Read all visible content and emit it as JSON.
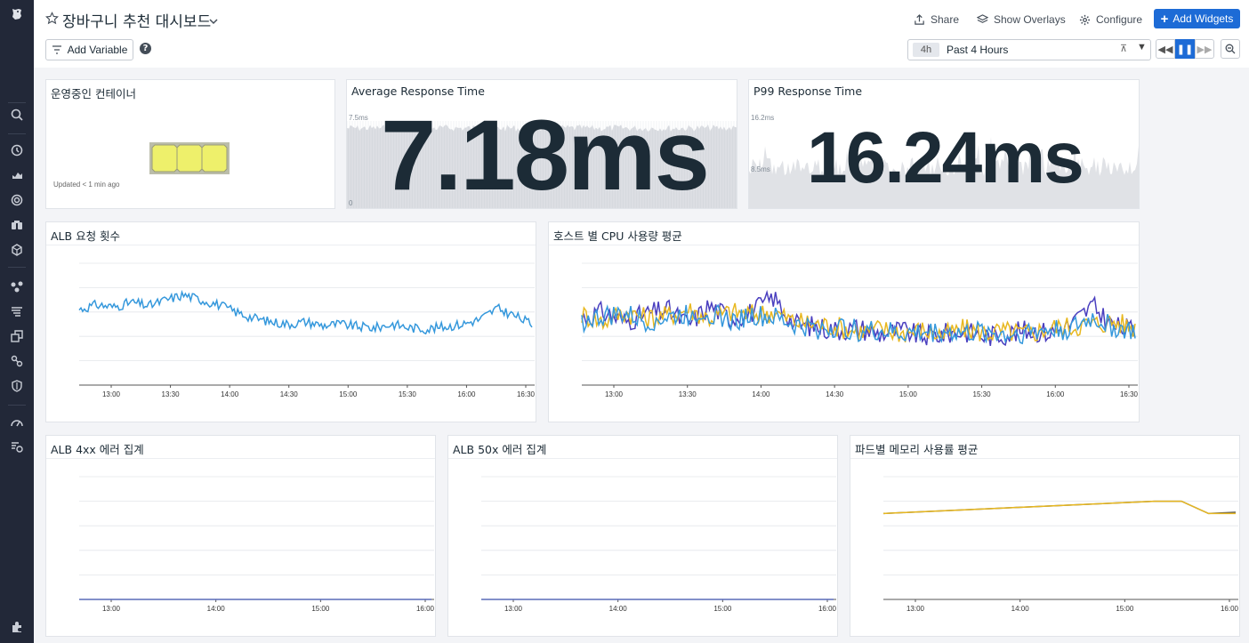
{
  "header": {
    "title": "장바구니 추천 대시보드",
    "share_label": "Share",
    "overlays_label": "Show Overlays",
    "configure_label": "Configure",
    "add_widgets_label": "Add Widgets",
    "add_variable_label": "Add Variable",
    "help_label": "?"
  },
  "timepicker": {
    "badge": "4h",
    "label": "Past 4 Hours"
  },
  "sidebar": {
    "icons": [
      "logo-icon",
      "search-icon",
      "history-icon",
      "dashboards-icon",
      "monitors-icon",
      "binoculars-icon",
      "infrastructure-icon",
      "apm-icon",
      "logs-icon",
      "synthetics-icon",
      "integrations-icon",
      "security-icon",
      "performance-icon",
      "watchdog-icon",
      "extensions-icon"
    ]
  },
  "widgets": {
    "containers": {
      "title": "운영중인 컨테이너",
      "updated": "Updated < 1 min ago",
      "hexagon_count": 3
    },
    "avg_response": {
      "title": "Average Response Time",
      "value": "7.18ms",
      "y_top": "7.5ms",
      "y_bottom": "0"
    },
    "p99_response": {
      "title": "P99 Response Time",
      "value": "16.24ms",
      "y_top": "16.2ms",
      "y_mid": "8.5ms"
    },
    "alb_requests": {
      "title": "ALB 요청 횟수"
    },
    "host_cpu": {
      "title": "호스트 별 CPU 사용량 평균"
    },
    "alb_4xx": {
      "title": "ALB 4xx 에러 집계"
    },
    "alb_50x": {
      "title": "ALB 50x 에러 집계"
    },
    "pod_memory": {
      "title": "파드별 메모리 사용률 평균"
    }
  },
  "colors": {
    "accent": "#1d6bd6",
    "series_blue": "#3598dc",
    "series_indigo": "#4a3fbf",
    "series_yellow": "#e8b820",
    "sidebar": "#222838",
    "hexagon": "#eef06b"
  },
  "chart_data": [
    {
      "type": "line",
      "title": "ALB 요청 횟수",
      "x_ticks": [
        "13:00",
        "13:30",
        "14:00",
        "14:30",
        "15:00",
        "15:30",
        "16:00",
        "16:30"
      ],
      "series": [
        {
          "values": [
            0.62,
            0.66,
            0.64,
            0.68,
            0.65,
            0.7,
            0.74,
            0.7,
            0.66,
            0.6,
            0.55,
            0.52,
            0.5,
            0.52,
            0.49,
            0.5,
            0.48,
            0.47,
            0.5,
            0.47,
            0.46,
            0.48,
            0.5,
            0.54,
            0.63,
            0.57,
            0.5
          ]
        }
      ]
    },
    {
      "type": "line",
      "title": "호스트 별 CPU 사용량 평균",
      "x_ticks": [
        "13:00",
        "13:30",
        "14:00",
        "14:30",
        "15:00",
        "15:30",
        "16:00",
        "16:30"
      ],
      "series": [
        {
          "values": [
            0.55,
            0.6,
            0.52,
            0.58,
            0.62,
            0.5,
            0.65,
            0.55,
            0.6,
            0.72,
            0.5,
            0.48,
            0.45,
            0.47,
            0.42,
            0.45,
            0.4,
            0.42,
            0.44,
            0.4,
            0.42,
            0.45,
            0.43,
            0.5,
            0.65,
            0.48,
            0.45
          ]
        },
        {
          "values": [
            0.58,
            0.52,
            0.6,
            0.55,
            0.57,
            0.62,
            0.55,
            0.6,
            0.58,
            0.6,
            0.52,
            0.5,
            0.48,
            0.44,
            0.46,
            0.43,
            0.45,
            0.41,
            0.46,
            0.43,
            0.44,
            0.42,
            0.47,
            0.48,
            0.5,
            0.52,
            0.47
          ]
        },
        {
          "values": [
            0.52,
            0.56,
            0.58,
            0.52,
            0.55,
            0.58,
            0.6,
            0.52,
            0.57,
            0.55,
            0.49,
            0.46,
            0.47,
            0.45,
            0.44,
            0.42,
            0.43,
            0.44,
            0.42,
            0.44,
            0.41,
            0.44,
            0.45,
            0.46,
            0.55,
            0.47,
            0.44
          ]
        }
      ]
    },
    {
      "type": "line",
      "title": "ALB 4xx 에러 집계",
      "x_ticks": [
        "13:00",
        "14:00",
        "15:00",
        "16:00"
      ],
      "series": [
        {
          "values": [
            0,
            0,
            0,
            0,
            0,
            0,
            0,
            0,
            0,
            0
          ]
        }
      ]
    },
    {
      "type": "line",
      "title": "ALB 50x 에러 집계",
      "x_ticks": [
        "13:00",
        "14:00",
        "15:00",
        "16:00"
      ],
      "series": [
        {
          "values": [
            0,
            0,
            0,
            0,
            0,
            0,
            0,
            0,
            0,
            0
          ]
        }
      ]
    },
    {
      "type": "line",
      "title": "파드별 메모리 사용률 평균",
      "x_ticks": [
        "13:00",
        "14:00",
        "15:00",
        "16:00"
      ],
      "series": [
        {
          "values": [
            0.7,
            0.71,
            0.72,
            0.73,
            0.74,
            0.75,
            0.76,
            0.77,
            0.78,
            0.79,
            0.8,
            0.8,
            0.7,
            0.71
          ]
        },
        {
          "values": [
            0.7,
            0.71,
            0.72,
            0.73,
            0.74,
            0.75,
            0.76,
            0.77,
            0.78,
            0.79,
            0.8,
            0.8,
            0.7,
            0.7
          ]
        }
      ]
    }
  ]
}
